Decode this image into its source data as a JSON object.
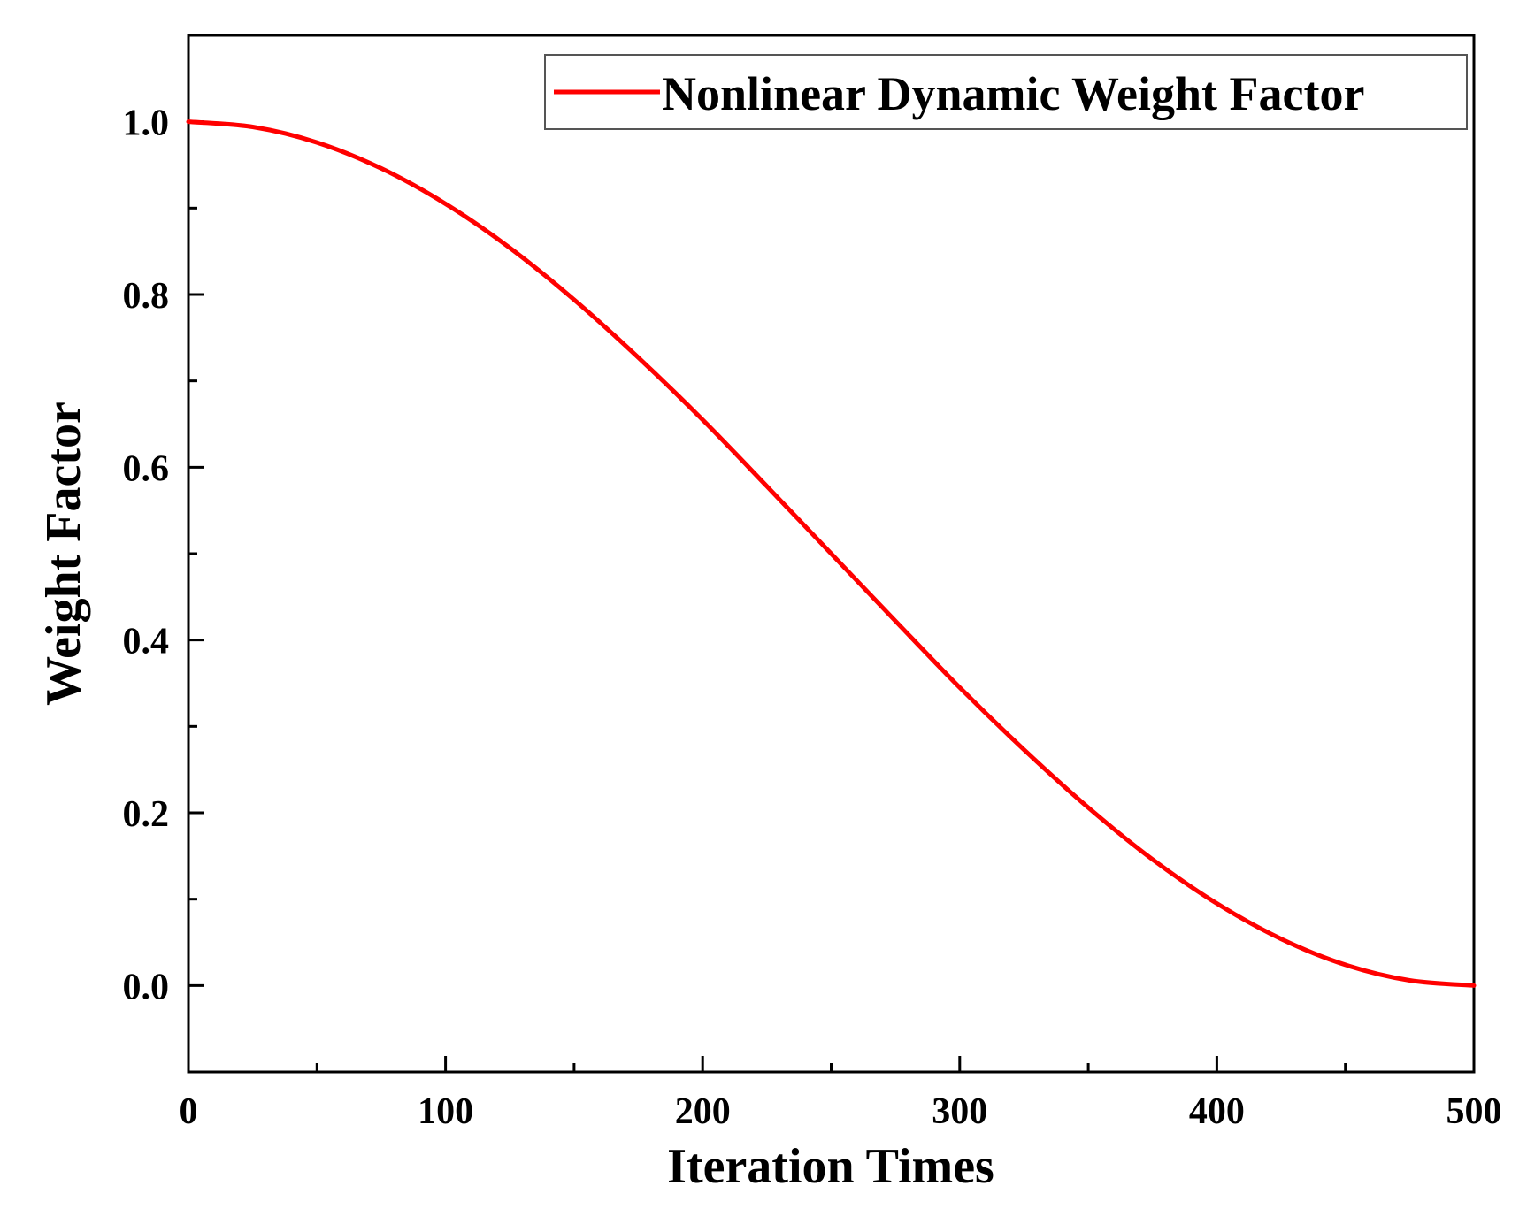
{
  "chart_data": {
    "type": "line",
    "title": "",
    "xlabel": "Iteration Times",
    "ylabel": "Weight Factor",
    "xlim": [
      0,
      500
    ],
    "ylim": [
      -0.1,
      1.1
    ],
    "x_ticks": [
      0,
      100,
      200,
      300,
      400,
      500
    ],
    "x_tick_labels": [
      "0",
      "100",
      "200",
      "300",
      "400",
      "500"
    ],
    "x_minor_ticks": [
      50,
      150,
      250,
      350,
      450
    ],
    "y_ticks": [
      0.0,
      0.2,
      0.4,
      0.6,
      0.8,
      1.0
    ],
    "y_tick_labels": [
      "0.0",
      "0.2",
      "0.4",
      "0.6",
      "0.8",
      "1.0"
    ],
    "y_minor_ticks": [
      0.1,
      0.3,
      0.5,
      0.7,
      0.9
    ],
    "grid": false,
    "legend_position": "top-right",
    "series": [
      {
        "name": "Nonlinear Dynamic Weight Factor",
        "color": "#ff0000",
        "x": [
          0,
          25,
          50,
          75,
          100,
          125,
          150,
          175,
          200,
          225,
          250,
          275,
          300,
          325,
          350,
          375,
          400,
          425,
          450,
          475,
          500
        ],
        "y": [
          1.0,
          0.994,
          0.976,
          0.946,
          0.905,
          0.854,
          0.794,
          0.727,
          0.655,
          0.578,
          0.5,
          0.422,
          0.345,
          0.273,
          0.206,
          0.146,
          0.095,
          0.054,
          0.024,
          0.006,
          0.0
        ]
      }
    ]
  }
}
